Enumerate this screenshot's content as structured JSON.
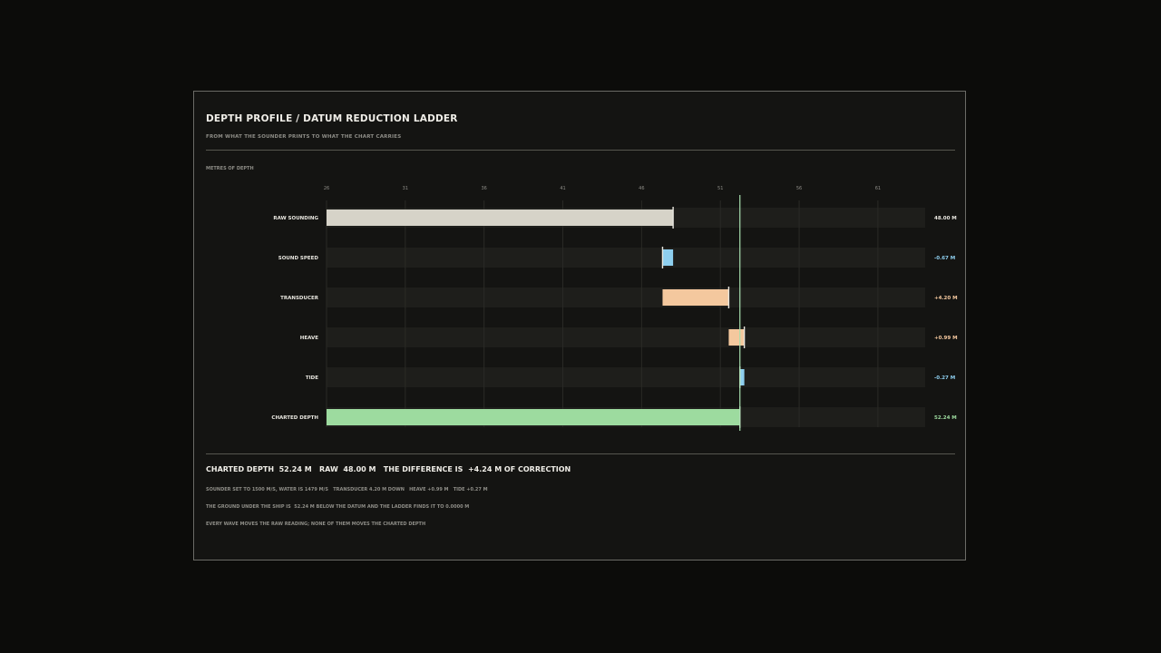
{
  "header": {
    "title": "DEPTH PROFILE / DATUM REDUCTION LADDER",
    "subtitle": "FROM WHAT THE SOUNDER PRINTS TO WHAT THE CHART CARRIES"
  },
  "chart_data": {
    "type": "bar",
    "subtype": "waterfall",
    "ylabel": "METRES OF DEPTH",
    "xlim": [
      26,
      64
    ],
    "ticks": [
      26,
      31,
      36,
      41,
      46,
      51,
      56,
      61
    ],
    "reference_value": 52.24,
    "rows": [
      {
        "label": "RAW SOUNDING",
        "start": 26,
        "end": 48.0,
        "value_label": "48.00 M",
        "kind": "total",
        "color": "#d6d3c8"
      },
      {
        "label": "SOUND SPEED",
        "start": 48.0,
        "end": 47.33,
        "value_label": "-0.67 M",
        "kind": "delta",
        "color": "#8ecfef"
      },
      {
        "label": "TRANSDUCER",
        "start": 47.33,
        "end": 51.53,
        "value_label": "+4.20 M",
        "kind": "delta",
        "color": "#f4c89e"
      },
      {
        "label": "HEAVE",
        "start": 51.53,
        "end": 52.52,
        "value_label": "+0.99 M",
        "kind": "delta",
        "color": "#f4c89e"
      },
      {
        "label": "TIDE",
        "start": 52.52,
        "end": 52.24,
        "value_label": "-0.27 M",
        "kind": "delta",
        "color": "#8ecfef"
      },
      {
        "label": "CHARTED DEPTH",
        "start": 26,
        "end": 52.24,
        "value_label": "52.24 M",
        "kind": "total",
        "color": "#9ddb9f"
      }
    ],
    "colors": {
      "track": "#1e1e1b",
      "grid": "#2a2a26",
      "reference_line": "#a8e0b0",
      "tick_text": "#8e8d87"
    }
  },
  "summary": {
    "line": "CHARTED DEPTH  52.24 M   RAW  48.00 M   THE DIFFERENCE IS  +4.24 M OF CORRECTION"
  },
  "notes": [
    "SOUNDER SET TO 1500 M/S, WATER IS 1479 M/S   TRANSDUCER 4.20 M DOWN   HEAVE +0.99 M   TIDE +0.27 M",
    "THE GROUND UNDER THE SHIP IS  52.24 M BELOW THE DATUM AND THE LADDER FINDS IT TO 0.0000 M",
    "EVERY WAVE MOVES THE RAW READING; NONE OF THEM MOVES THE CHARTED DEPTH"
  ]
}
